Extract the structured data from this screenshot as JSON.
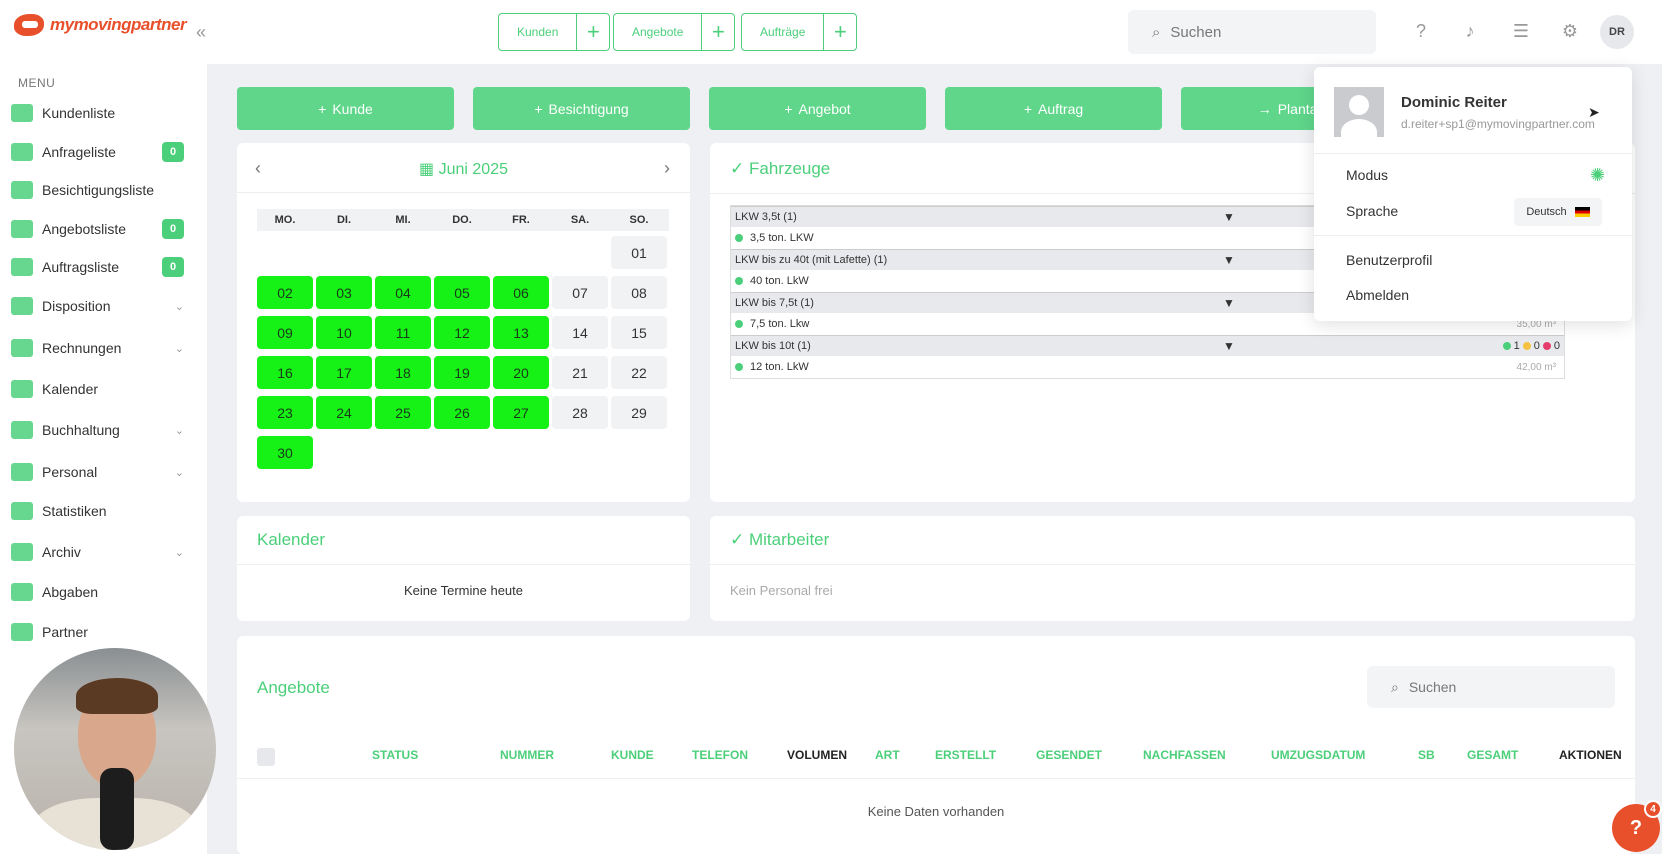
{
  "brand": {
    "name": "mymovingpartner",
    "accent": "#4ccf7a",
    "brand_color": "#e8502c"
  },
  "sidebar": {
    "menu_label": "MENU",
    "items": [
      {
        "label": "Kundenliste",
        "icon": "users-icon"
      },
      {
        "label": "Anfrageliste",
        "icon": "inbox-icon",
        "badge": "0"
      },
      {
        "label": "Besichtigungsliste",
        "icon": "house-icon"
      },
      {
        "label": "Angebotsliste",
        "icon": "document-icon",
        "badge": "0"
      },
      {
        "label": "Auftragsliste",
        "icon": "file-icon",
        "badge": "0"
      },
      {
        "label": "Disposition",
        "icon": "chart-icon",
        "chevron": "⌄"
      },
      {
        "label": "Rechnungen",
        "icon": "cash-icon",
        "chevron": "⌄"
      },
      {
        "label": "Kalender",
        "icon": "calendar-icon"
      },
      {
        "label": "Buchhaltung",
        "icon": "grid-icon",
        "chevron": "⌄"
      },
      {
        "label": "Personal",
        "icon": "person-clock-icon",
        "chevron": "⌄"
      },
      {
        "label": "Statistiken",
        "icon": "stats-icon"
      },
      {
        "label": "Archiv",
        "icon": "archive-icon",
        "chevron": "⌄"
      },
      {
        "label": "Abgaben",
        "icon": "network-icon"
      },
      {
        "label": "Partner",
        "icon": "handshake-icon"
      }
    ]
  },
  "topbar": {
    "quick": [
      {
        "label": "Kunden"
      },
      {
        "label": "Angebote"
      },
      {
        "label": "Aufträge"
      }
    ],
    "search_placeholder": "Suchen",
    "avatar_initials": "DR"
  },
  "actions": [
    {
      "label": "Kunde",
      "prefix": "+"
    },
    {
      "label": "Besichtigung",
      "prefix": "+"
    },
    {
      "label": "Angebot",
      "prefix": "+"
    },
    {
      "label": "Auftrag",
      "prefix": "+"
    },
    {
      "label": "Plantaf",
      "prefix": "→"
    }
  ],
  "calendar": {
    "month": "Juni 2025",
    "dow": [
      "MO.",
      "DI.",
      "MI.",
      "DO.",
      "FR.",
      "SA.",
      "SO."
    ],
    "days": [
      "01",
      "02",
      "03",
      "04",
      "05",
      "06",
      "07",
      "08",
      "09",
      "10",
      "11",
      "12",
      "13",
      "14",
      "15",
      "16",
      "17",
      "18",
      "19",
      "20",
      "21",
      "22",
      "23",
      "24",
      "25",
      "26",
      "27",
      "28",
      "29",
      "30"
    ],
    "workdays": [
      "02",
      "03",
      "04",
      "05",
      "06",
      "09",
      "10",
      "11",
      "12",
      "13",
      "16",
      "17",
      "18",
      "19",
      "20",
      "23",
      "24",
      "25",
      "26",
      "27",
      "30"
    ]
  },
  "vehicles": {
    "title": "Fahrzeuge",
    "groups": [
      {
        "name": "LKW 3,5t (1)",
        "item": "3,5 ton. LKW",
        "vol": ""
      },
      {
        "name": "LKW bis zu 40t (mit Lafette) (1)",
        "item": "40 ton. LkW",
        "vol": ""
      },
      {
        "name": "LKW bis 7,5t (1)",
        "item": "7,5 ton. Lkw",
        "vol": "35,00 m³"
      },
      {
        "name": "LKW bis 10t (1)",
        "item": "12 ton. LkW",
        "vol": "42,00 m³",
        "stats": [
          "1",
          "0",
          "0"
        ]
      }
    ]
  },
  "kalender_card": {
    "title": "Kalender",
    "empty": "Keine Termine heute"
  },
  "mitarbeiter_card": {
    "title": "Mitarbeiter",
    "empty": "Kein Personal frei"
  },
  "angebote": {
    "title": "Angebote",
    "search_placeholder": "Suchen",
    "columns": [
      "STATUS",
      "NUMMER",
      "KUNDE",
      "TELEFON",
      "VOLUMEN",
      "ART",
      "ERSTELLT",
      "GESENDET",
      "NACHFASSEN",
      "UMZUGSDATUM",
      "SB",
      "GESAMT",
      "AKTIONEN"
    ],
    "empty": "Keine Daten vorhanden"
  },
  "user_menu": {
    "name": "Dominic Reiter",
    "email": "d.reiter+sp1@mymovingpartner.com",
    "modus_label": "Modus",
    "sprache_label": "Sprache",
    "language": "Deutsch",
    "profile": "Benutzerprofil",
    "logout": "Abmelden"
  },
  "help": {
    "label": "?",
    "count": "4"
  }
}
